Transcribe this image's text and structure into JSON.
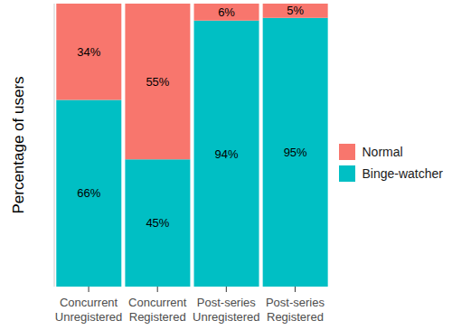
{
  "chart_data": {
    "type": "bar",
    "stacked": true,
    "y_label": "Percentage of users",
    "categories": [
      "Concurrent Unregistered",
      "Concurrent Registered",
      "Post-series Unregistered",
      "Post-series Registered"
    ],
    "series": [
      {
        "name": "Binge-watcher",
        "color": "#00BFC4",
        "values": [
          66,
          45,
          94,
          95
        ],
        "value_labels": [
          "66%",
          "45%",
          "94%",
          "95%"
        ]
      },
      {
        "name": "Normal",
        "color": "#F8766D",
        "values": [
          34,
          55,
          6,
          5
        ],
        "value_labels": [
          "34%",
          "55%",
          "6%",
          "5%"
        ]
      }
    ],
    "ylim": [
      0,
      100
    ],
    "tick_labels": "x",
    "data_labels": true,
    "legend": "right",
    "grid": false
  }
}
